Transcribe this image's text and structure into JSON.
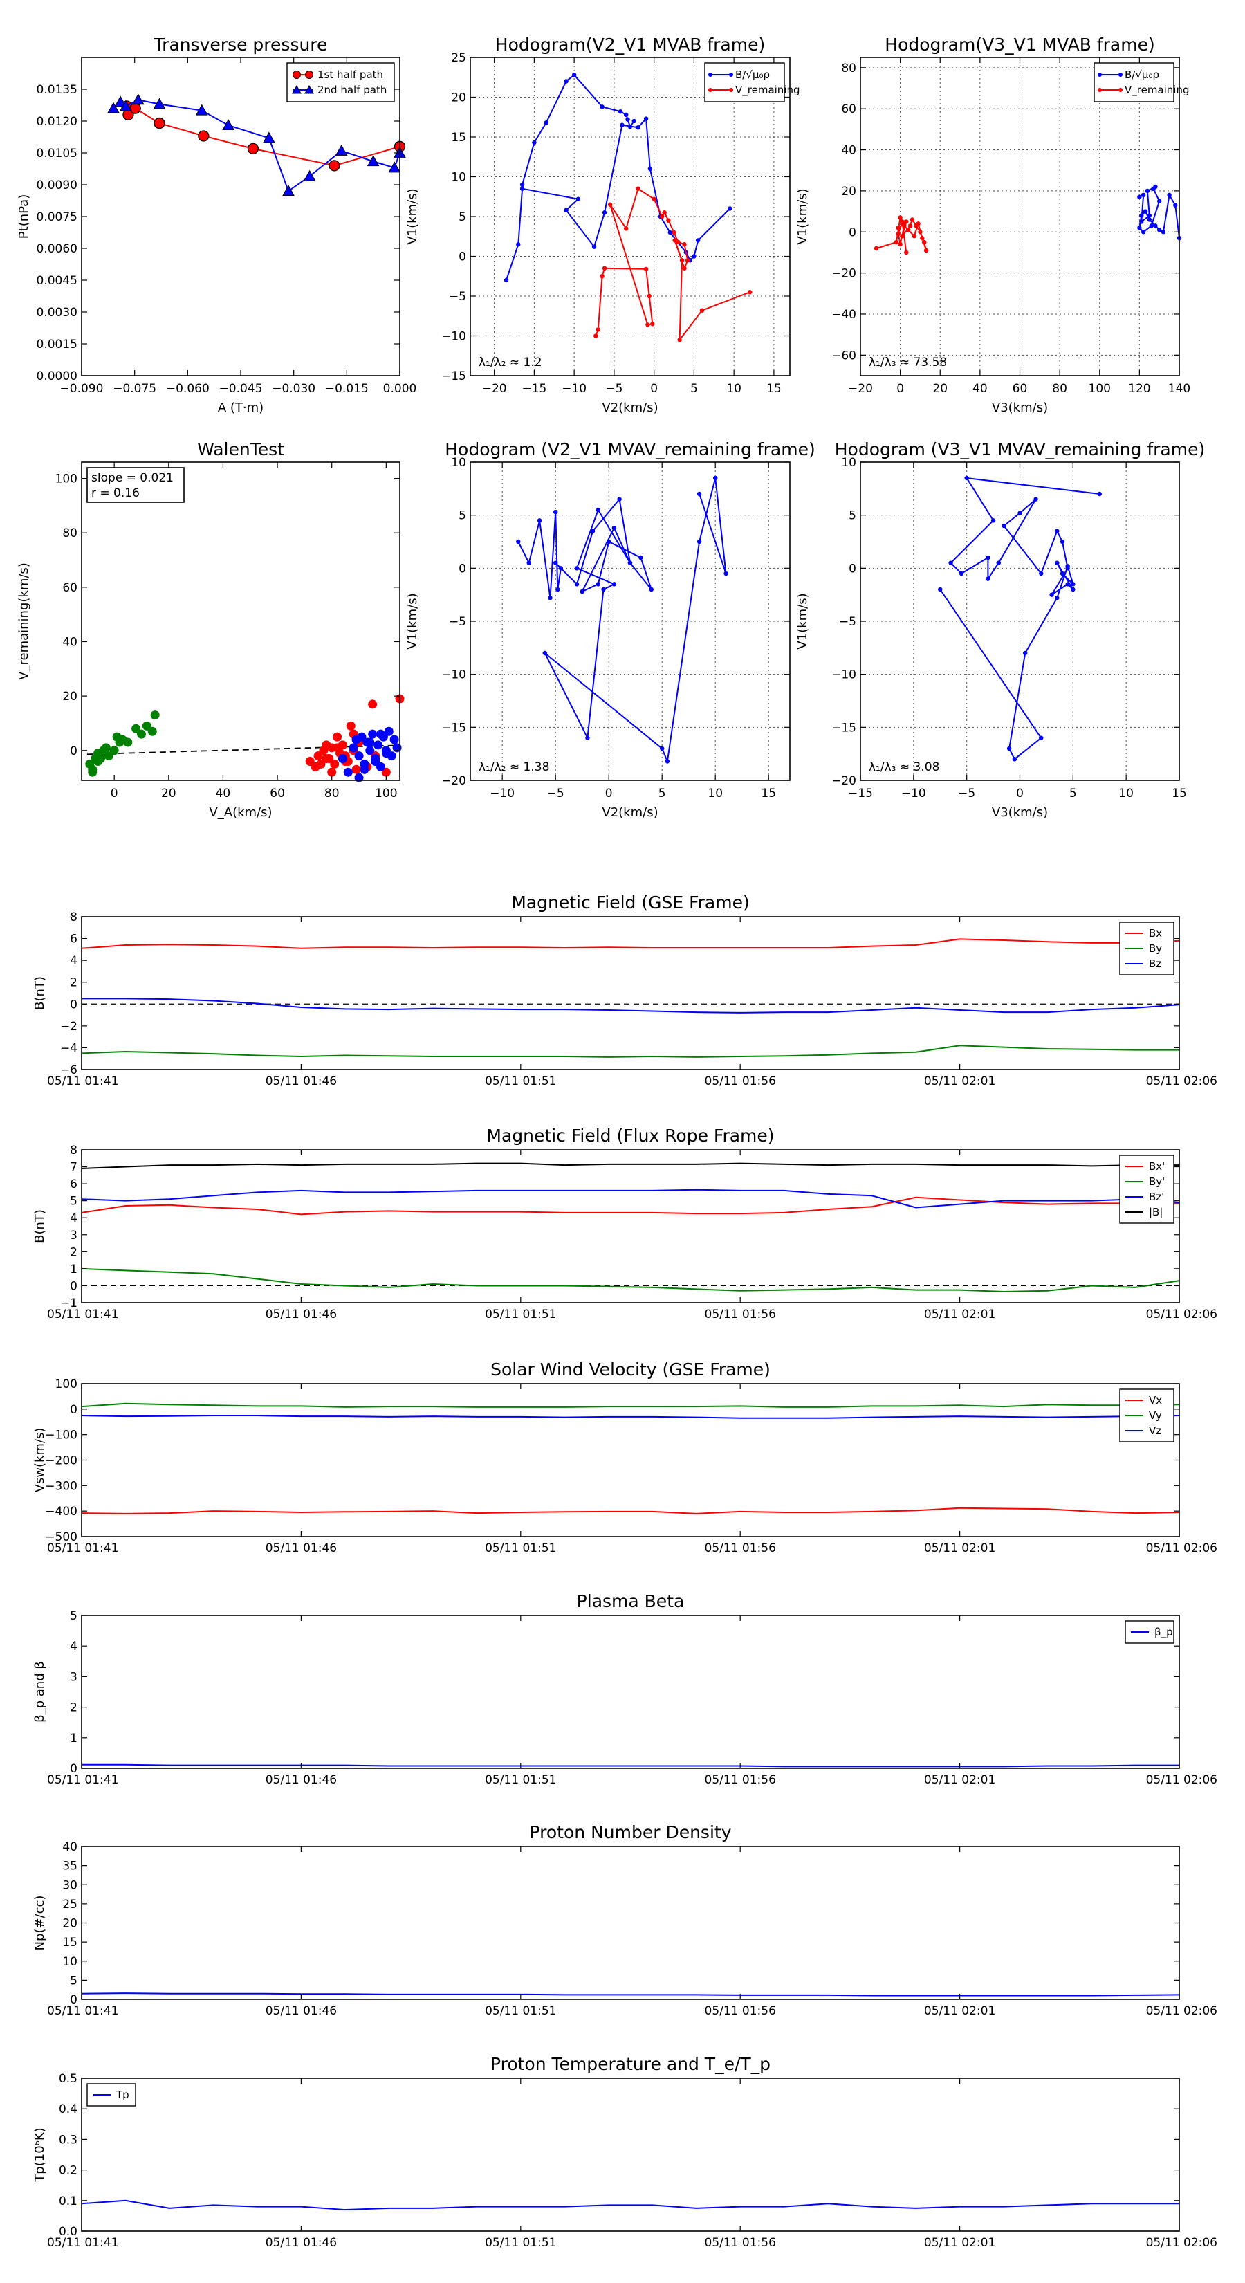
{
  "chart_data": [
    {
      "id": "p1",
      "type": "scatter",
      "title": "Transverse pressure",
      "xlabel": "A (T·m)",
      "ylabel": "Pt(nPa)",
      "xlim": [
        -0.09,
        0.0
      ],
      "ylim": [
        0.0,
        0.015
      ],
      "grid": false,
      "legend": "top-right",
      "xticks": [
        "−0.090",
        "−0.075",
        "−0.060",
        "−0.045",
        "−0.030",
        "−0.015",
        "0.000"
      ],
      "yticks": [
        "0.0000",
        "0.0015",
        "0.0030",
        "0.0045",
        "0.0060",
        "0.0075",
        "0.0090",
        "0.0105",
        "0.0120",
        "0.0135"
      ],
      "series": [
        {
          "name": "1st half path",
          "color": "#ff0000",
          "marker": "circle",
          "x": [
            -0.0772,
            -0.0768,
            -0.0748,
            -0.068,
            -0.0555,
            -0.0415,
            -0.0185,
            0.0
          ],
          "y": [
            0.0127,
            0.0123,
            0.0126,
            0.0119,
            0.0113,
            0.0107,
            0.0099,
            0.0108
          ]
        },
        {
          "name": "2nd half path",
          "color": "#0000ff",
          "marker": "triangle",
          "x": [
            -0.081,
            -0.079,
            -0.0775,
            -0.074,
            -0.068,
            -0.056,
            -0.0485,
            -0.037,
            -0.0315,
            -0.0255,
            -0.0165,
            -0.0075,
            -0.0015,
            0.0
          ],
          "y": [
            0.0126,
            0.0129,
            0.0127,
            0.013,
            0.0128,
            0.0125,
            0.0118,
            0.0112,
            0.0087,
            0.0094,
            0.0106,
            0.0101,
            0.0098,
            0.0105
          ]
        }
      ]
    },
    {
      "id": "p2",
      "type": "line",
      "title": "Hodogram(V2_V1 MVAB frame)",
      "xlabel": "V2(km/s)",
      "ylabel": "V1(km/s)",
      "xlim": [
        -23,
        17
      ],
      "ylim": [
        -15,
        25
      ],
      "grid": true,
      "legend": "top-right",
      "xticks": [
        "−20",
        "−15",
        "−10",
        "−5",
        "0",
        "5",
        "10",
        "15"
      ],
      "yticks": [
        "−15",
        "−10",
        "−5",
        "0",
        "5",
        "10",
        "15",
        "20",
        "25"
      ],
      "annotation": "λ₁/λ₂ ≈ 1.2",
      "series": [
        {
          "name": "B/√(μ₀ρ)",
          "color": "#0000ff",
          "x": [
            -18.5,
            -17,
            -16.5,
            -16,
            -11,
            -9,
            -6.5,
            -4,
            -4,
            -3,
            -3.3,
            -3.7,
            -3,
            -2,
            -3.5,
            -5.5,
            -5,
            -1,
            -1.5,
            -2,
            -3,
            -5,
            -7,
            -12,
            -14,
            -13.5,
            -11,
            -10,
            -6,
            -4,
            -3,
            -3,
            -2,
            -2.5,
            0,
            0.5,
            4,
            5,
            9.5
          ],
          "x2": [],
          "y": [
            -3,
            1.5,
            9,
            8.5,
            7,
            5.5,
            7,
            15.5,
            16,
            16.5,
            17,
            18.5,
            18,
            17,
            17,
            16.5,
            16,
            17,
            17,
            17.5,
            18,
            19,
            21,
            22,
            14,
            16,
            17.5,
            22,
            22.5,
            19.5,
            18.5,
            18,
            17.5,
            17,
            17.5,
            11,
            5,
            0.5,
            6
          ]
        }
      ]
    }
  ]
}
